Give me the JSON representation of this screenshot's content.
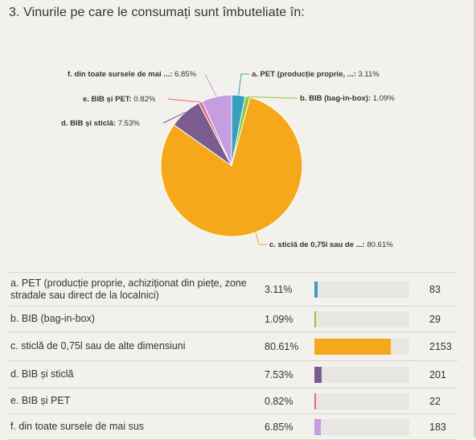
{
  "question": {
    "title": "3. Vinurile pe care le consumați sunt îmbuteliate în:"
  },
  "chart_data": {
    "type": "pie",
    "slices": [
      {
        "short_label": "a. PET (producție proprie, ...:",
        "label": "a. PET (producție proprie, achiziționat din piețe, zone stradale sau direct de la localnici)",
        "percent": 3.11,
        "percent_text": "3.11%",
        "count": 83,
        "color": "#3a9fbf"
      },
      {
        "short_label": "b. BIB (bag-in-box):",
        "label": "b. BIB (bag-in-box)",
        "percent": 1.09,
        "percent_text": "1.09%",
        "count": 29,
        "color": "#8dc63f"
      },
      {
        "short_label": "c. sticlă de 0,75l sau de ...:",
        "label": "c. sticlă de 0,75l sau de alte dimensiuni",
        "percent": 80.61,
        "percent_text": "80.61%",
        "count": 2153,
        "color": "#f5a81a"
      },
      {
        "short_label": "d. BIB și sticlă:",
        "label": "d. BIB și sticlă",
        "percent": 7.53,
        "percent_text": "7.53%",
        "count": 201,
        "color": "#7b5c8e"
      },
      {
        "short_label": "e. BIB și PET:",
        "label": "e. BIB și PET",
        "percent": 0.82,
        "percent_text": "0.82%",
        "count": 22,
        "color": "#e06a84"
      },
      {
        "short_label": "f. din toate sursele de mai ...:",
        "label": "f. din toate sursele de mai sus",
        "percent": 6.85,
        "percent_text": "6.85%",
        "count": 183,
        "color": "#c59de0"
      }
    ]
  }
}
